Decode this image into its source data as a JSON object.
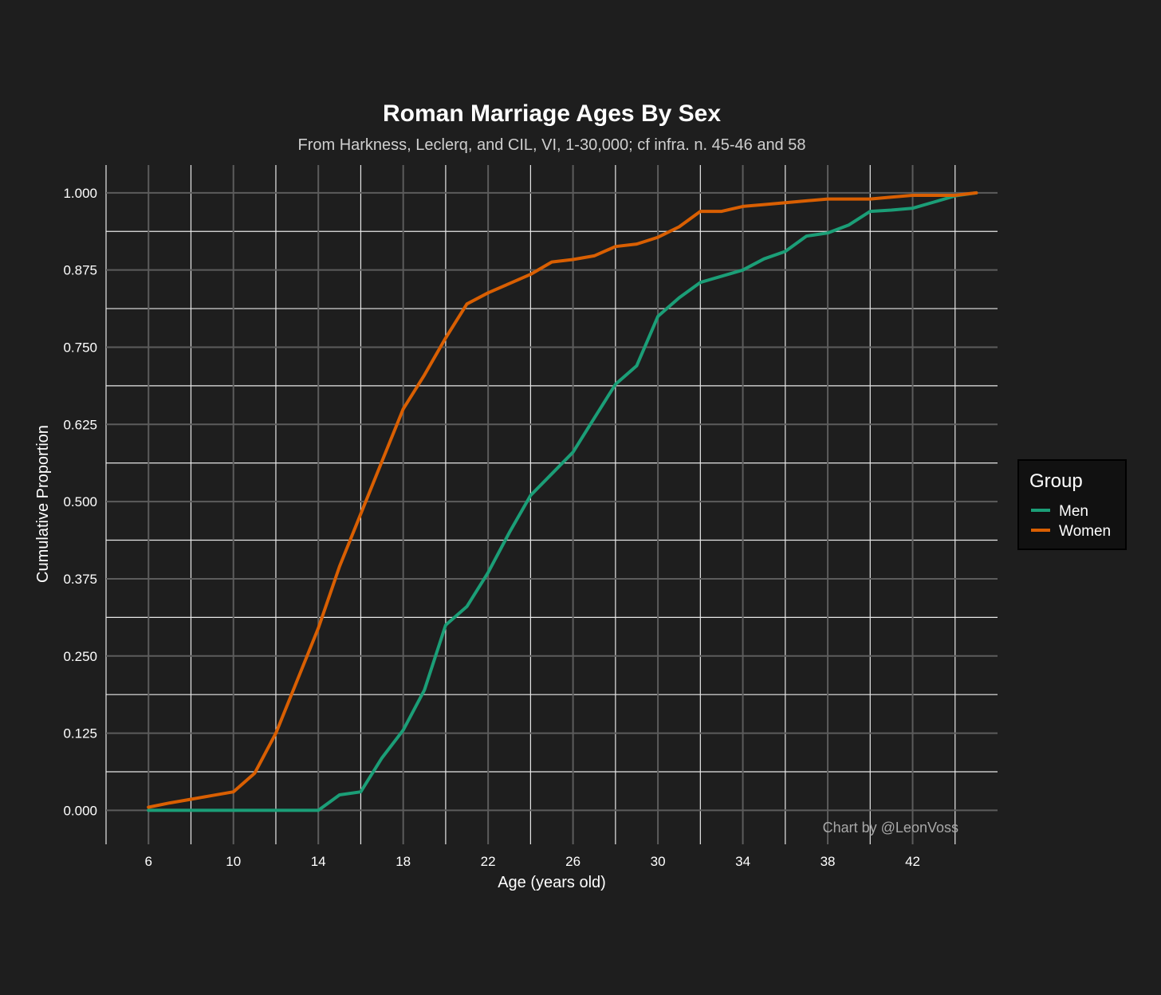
{
  "chart_data": {
    "type": "line",
    "title": "Roman Marriage Ages By Sex",
    "subtitle": "From Harkness, Leclerq, and CIL, VI, 1-30,000; cf infra. n. 45-46 and 58",
    "xlabel": "Age (years old)",
    "ylabel": "Cumulative Proportion",
    "caption": "Chart by @LeonVoss",
    "xlim": [
      4,
      46
    ],
    "ylim": [
      -0.055,
      1.045
    ],
    "x_ticks": [
      6,
      10,
      14,
      18,
      22,
      26,
      30,
      34,
      38,
      42
    ],
    "y_ticks": [
      0.0,
      0.125,
      0.25,
      0.375,
      0.5,
      0.625,
      0.75,
      0.875,
      1.0
    ],
    "x_tick_labels": [
      "6",
      "10",
      "14",
      "18",
      "22",
      "26",
      "30",
      "34",
      "38",
      "42"
    ],
    "y_tick_labels": [
      "0.000",
      "0.125",
      "0.250",
      "0.375",
      "0.500",
      "0.625",
      "0.750",
      "0.875",
      "1.000"
    ],
    "grid": true,
    "legend": {
      "title": "Group",
      "position": "right"
    },
    "series": [
      {
        "name": "Men",
        "color": "#1b9e77",
        "x": [
          6,
          7,
          8,
          9,
          10,
          11,
          12,
          13,
          14,
          15,
          16,
          17,
          18,
          19,
          20,
          21,
          22,
          23,
          24,
          25,
          26,
          27,
          28,
          29,
          30,
          31,
          32,
          33,
          34,
          35,
          36,
          37,
          38,
          39,
          40,
          41,
          42,
          43,
          44,
          45
        ],
        "values": [
          0,
          0,
          0,
          0,
          0,
          0,
          0,
          0,
          0,
          0.025,
          0.03,
          0.085,
          0.13,
          0.195,
          0.3,
          0.33,
          0.385,
          0.45,
          0.51,
          0.545,
          0.58,
          0.635,
          0.69,
          0.72,
          0.8,
          0.83,
          0.855,
          0.865,
          0.875,
          0.893,
          0.905,
          0.93,
          0.935,
          0.948,
          0.97,
          0.972,
          0.975,
          0.985,
          0.995,
          1.0
        ]
      },
      {
        "name": "Women",
        "color": "#d95f02",
        "x": [
          6,
          7,
          8,
          9,
          10,
          11,
          12,
          13,
          14,
          15,
          16,
          17,
          18,
          19,
          20,
          21,
          22,
          23,
          24,
          25,
          26,
          27,
          28,
          29,
          30,
          31,
          32,
          33,
          34,
          35,
          36,
          37,
          38,
          39,
          40,
          41,
          42,
          43,
          44,
          45
        ],
        "values": [
          0.005,
          0.012,
          0.018,
          0.024,
          0.03,
          0.06,
          0.125,
          0.21,
          0.295,
          0.395,
          0.48,
          0.565,
          0.65,
          0.705,
          0.765,
          0.82,
          0.838,
          0.853,
          0.868,
          0.888,
          0.892,
          0.898,
          0.913,
          0.917,
          0.928,
          0.945,
          0.97,
          0.97,
          0.978,
          0.981,
          0.984,
          0.987,
          0.99,
          0.99,
          0.99,
          0.993,
          0.996,
          0.996,
          0.996,
          1.0
        ]
      }
    ]
  }
}
